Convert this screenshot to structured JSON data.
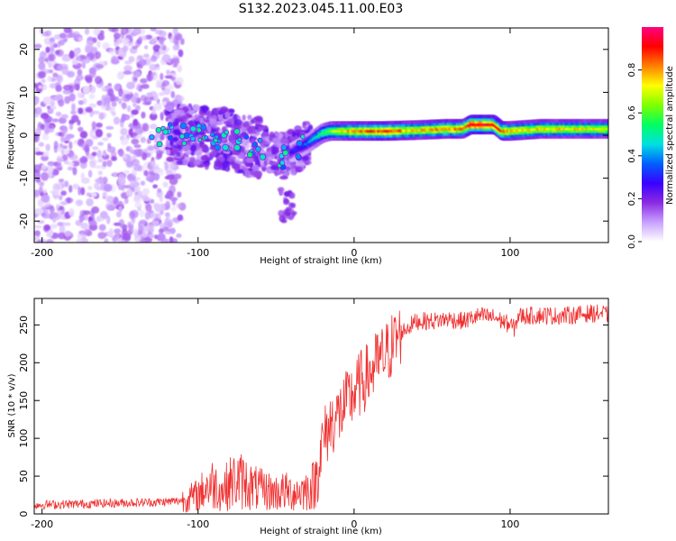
{
  "figure": {
    "title": "S132.2023.045.11.00.E03"
  },
  "chart_data": [
    {
      "type": "heatmap",
      "xlabel": "Height of straight line (km)",
      "ylabel": "Frequency (Hz)",
      "xlim": [
        -205,
        163
      ],
      "ylim": [
        -25,
        25
      ],
      "xticks": [
        -200,
        -100,
        0,
        100
      ],
      "yticks": [
        -20,
        -10,
        0,
        10,
        20
      ],
      "colorbar": {
        "label": "Normalized spectral amplitude",
        "range": [
          0,
          1
        ],
        "ticks": [
          0.0,
          0.2,
          0.4,
          0.6,
          0.8
        ],
        "tick_labels": [
          "0.0",
          "0.2",
          "0.4",
          "0.6",
          "0.8"
        ],
        "colors": [
          "#ffffff",
          "#c8a0ff",
          "#8a2be2",
          "#3a00ff",
          "#0060ff",
          "#00e0e0",
          "#00ff60",
          "#80ff00",
          "#ffff00",
          "#ff8000",
          "#ff0000",
          "#ff0080"
        ]
      },
      "signal_path": {
        "x": [
          -205,
          -160,
          -120,
          -100,
          -80,
          -60,
          -45,
          -35,
          -28,
          -20,
          -15,
          -5,
          0,
          20,
          40,
          60,
          70,
          75,
          80,
          90,
          95,
          100,
          120,
          163
        ],
        "y": [
          -2,
          -1.5,
          0.5,
          0,
          -1,
          -3,
          -5,
          -3,
          -1.5,
          0.5,
          1,
          1,
          1,
          1,
          1.2,
          1.5,
          1.5,
          2.5,
          2.5,
          2.5,
          1,
          1,
          1.5,
          1.5
        ],
        "amplitude": [
          0.12,
          0.15,
          0.18,
          0.2,
          0.22,
          0.22,
          0.24,
          0.3,
          0.4,
          0.55,
          0.65,
          0.75,
          0.8,
          0.88,
          0.75,
          0.82,
          0.8,
          0.95,
          0.95,
          0.9,
          0.85,
          0.78,
          0.75,
          0.72
        ]
      }
    },
    {
      "type": "line",
      "xlabel": "Height of straight line (km)",
      "ylabel": "SNR (10 * v/v)",
      "xlim": [
        -205,
        163
      ],
      "ylim": [
        0,
        285
      ],
      "xticks": [
        -200,
        -100,
        0,
        100
      ],
      "yticks": [
        0,
        50,
        100,
        150,
        200,
        250
      ],
      "color": "#f03030",
      "series": [
        {
          "x": [
            -205,
            -180,
            -160,
            -140,
            -120,
            -110,
            -100,
            -95,
            -90,
            -85,
            -80,
            -75,
            -70,
            -65,
            -60,
            -55,
            -50,
            -45,
            -40,
            -35,
            -30,
            -25,
            -22,
            -20,
            -15,
            -10,
            -5,
            0,
            5,
            10,
            15,
            20,
            25,
            30,
            40,
            50,
            60,
            70,
            80,
            90,
            100,
            103,
            105,
            110,
            120,
            130,
            140,
            150,
            160,
            163
          ],
          "y": [
            12,
            13,
            14,
            15,
            16,
            18,
            25,
            35,
            40,
            30,
            40,
            45,
            42,
            35,
            32,
            30,
            28,
            30,
            28,
            30,
            32,
            40,
            75,
            95,
            120,
            130,
            145,
            160,
            175,
            185,
            200,
            210,
            225,
            240,
            255,
            255,
            258,
            255,
            262,
            260,
            250,
            245,
            262,
            262,
            263,
            262,
            263,
            265,
            265,
            262
          ]
        }
      ]
    }
  ]
}
